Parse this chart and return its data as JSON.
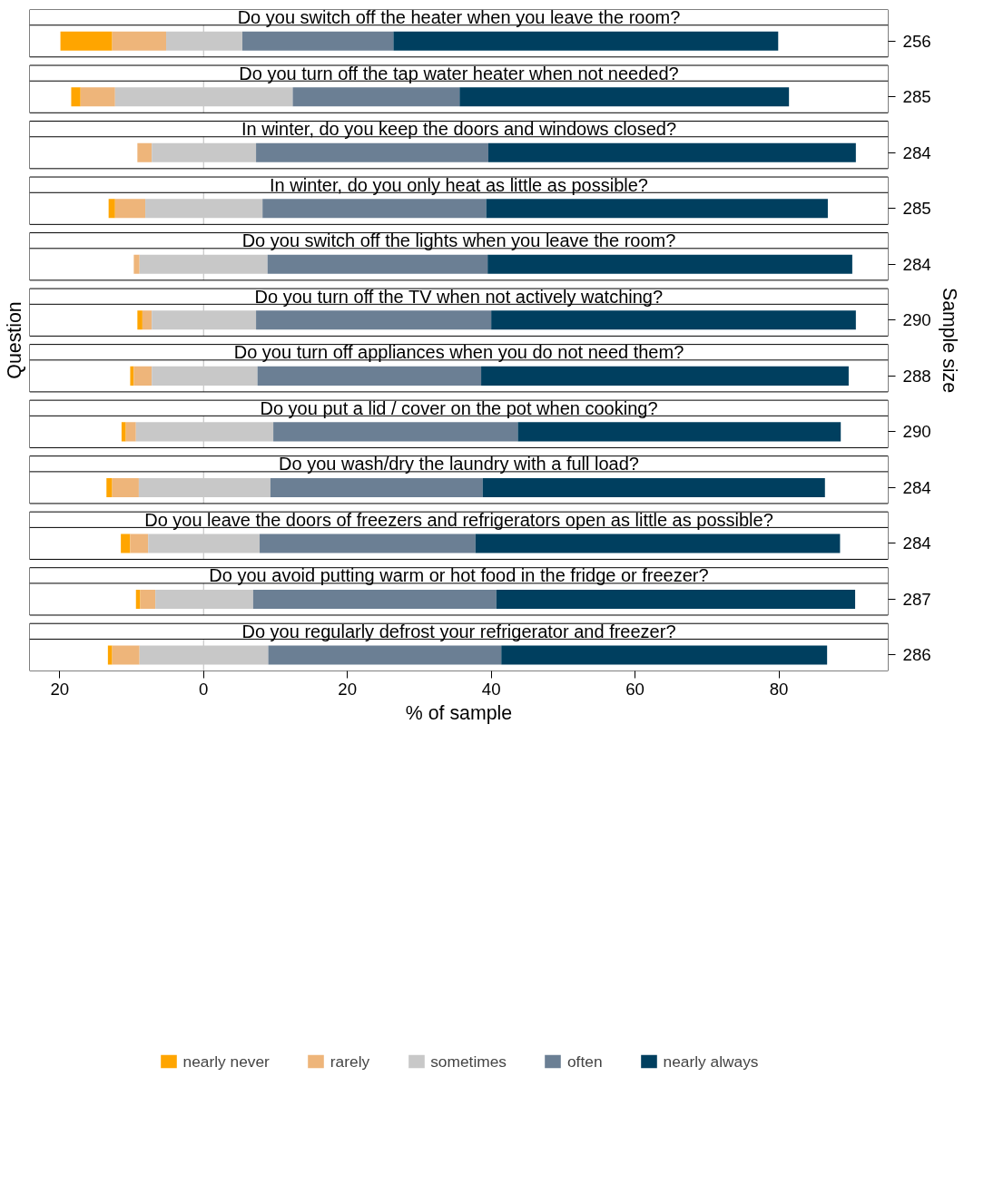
{
  "chart_data": {
    "type": "bar",
    "orientation": "horizontal",
    "categories": [
      "Do you switch off the heater when you leave the room?",
      "Do you turn off the tap water heater when not needed?",
      "In winter, do you keep the doors and windows closed?",
      "In winter, do you only heat as little as possible?",
      "Do you switch off the lights when you leave the room?",
      "Do you turn off the TV when not actively watching?",
      "Do you turn off appliances when you do not need them?",
      "Do you put a lid / cover on the pot when cooking?",
      "Do you wash/dry the laundry with a full load?",
      "Do you leave the doors of freezers and refrigerators open as little as possible?",
      "Do you avoid putting warm or hot food in the fridge or freezer?",
      "Do you regularly defrost your refrigerator and freezer?"
    ],
    "series": [
      {
        "name": "nearly never",
        "color": "#ffa500",
        "base": [
          -19.9,
          -18.4,
          null,
          -13.2,
          null,
          -9.2,
          -10.2,
          -11.4,
          -13.5,
          -11.5,
          -9.4,
          -13.3
        ],
        "values": [
          7.2,
          1.3,
          null,
          0.9,
          null,
          0.7,
          0.5,
          0.6,
          0.8,
          1.3,
          0.6,
          0.6
        ]
      },
      {
        "name": "rarely",
        "color": "#eeb57a",
        "base": [
          -12.7,
          -17.1,
          -9.2,
          -12.3,
          -9.7,
          -8.5,
          -9.7,
          -10.8,
          -12.7,
          -10.2,
          -8.8,
          -12.7
        ],
        "values": [
          7.5,
          4.8,
          2.0,
          4.2,
          0.8,
          1.3,
          2.5,
          1.4,
          3.7,
          2.5,
          2.1,
          3.8
        ]
      },
      {
        "name": "sometimes",
        "color": "#c8c8c8",
        "base": [
          -5.2,
          -12.3,
          -7.2,
          -8.1,
          -8.9,
          -7.2,
          -7.2,
          -9.4,
          -9.0,
          -7.7,
          -6.7,
          -8.9
        ],
        "values": [
          10.6,
          24.7,
          14.5,
          16.3,
          17.8,
          14.5,
          14.7,
          19.1,
          18.3,
          15.5,
          13.6,
          17.9
        ]
      },
      {
        "name": "often",
        "color": "#6b7f94",
        "base": [
          5.4,
          12.4,
          7.3,
          8.2,
          8.9,
          7.3,
          7.5,
          9.7,
          9.3,
          7.8,
          6.9,
          9.0
        ],
        "values": [
          21.0,
          23.2,
          32.3,
          31.1,
          30.6,
          32.7,
          31.1,
          34.0,
          29.5,
          30.0,
          33.8,
          32.4
        ]
      },
      {
        "name": "nearly always",
        "color": "#003f5f",
        "base": [
          26.4,
          35.6,
          39.6,
          39.3,
          39.5,
          40.0,
          38.6,
          43.7,
          38.8,
          37.8,
          40.7,
          41.4
        ],
        "values": [
          53.5,
          45.8,
          51.1,
          47.5,
          50.7,
          50.7,
          51.1,
          44.9,
          47.6,
          50.7,
          49.9,
          45.3
        ]
      }
    ],
    "xlim": [
      -24.2,
      95.2
    ],
    "xticks": [
      {
        "value": -20,
        "label": "20"
      },
      0,
      20,
      40,
      60,
      80
    ],
    "xlabel": "% of sample",
    "ylabel": "Question",
    "y2label": "Sample size",
    "annotations": [
      "256",
      "285",
      "284",
      "285",
      "284",
      "290",
      "288",
      "290",
      "284",
      "284",
      "287",
      "286"
    ],
    "legend": "bottom"
  }
}
